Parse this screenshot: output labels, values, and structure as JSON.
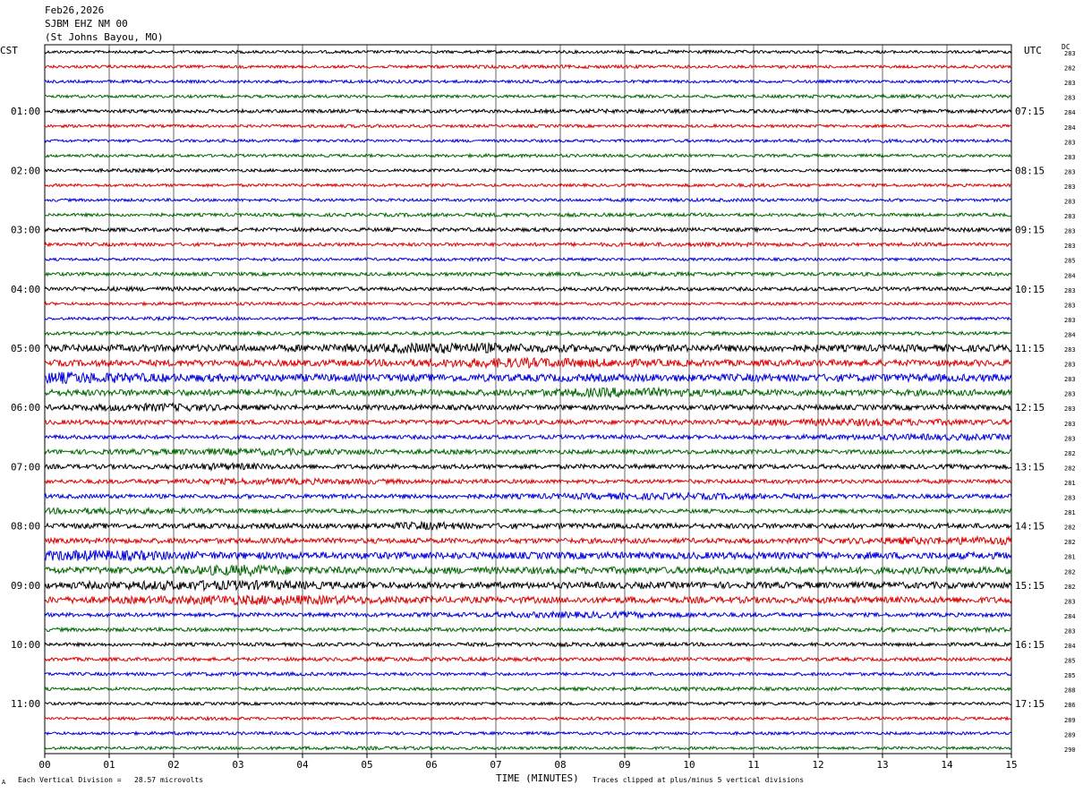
{
  "header": {
    "date": "Feb26,2026",
    "station": "SJBM EHZ NM 00",
    "location": "(St Johns Bayou, MO)"
  },
  "labels": {
    "left_timezone": "CST",
    "right_timezone": "UTC",
    "dc_header": "DC",
    "x_axis_title": "TIME (MINUTES)",
    "scale_note": "Each Vertical Division =   28.57 microvolts",
    "clip_note": "Traces clipped at plus/minus 5 vertical divisions",
    "corner_mark": "A"
  },
  "colors": {
    "trace_cycle": [
      "#000000",
      "#dd0000",
      "#0000dd",
      "#006600"
    ],
    "grid": "#000000"
  },
  "chart_data": {
    "type": "line",
    "title": "",
    "xlabel": "TIME (MINUTES)",
    "ylabel": "",
    "xlim": [
      0,
      15
    ],
    "x_ticks": [
      "00",
      "01",
      "02",
      "03",
      "04",
      "05",
      "06",
      "07",
      "08",
      "09",
      "10",
      "11",
      "12",
      "13",
      "14",
      "15"
    ],
    "row_count": 48,
    "left_hour_labels": [
      "01:00",
      "02:00",
      "03:00",
      "04:00",
      "05:00",
      "06:00",
      "07:00",
      "08:00",
      "09:00",
      "10:00",
      "11:00"
    ],
    "right_hour_labels": [
      "07:15",
      "08:15",
      "09:15",
      "10:15",
      "11:15",
      "12:15",
      "13:15",
      "14:15",
      "15:15",
      "16:15",
      "17:15"
    ],
    "hour_label_rows": [
      4,
      8,
      12,
      16,
      20,
      24,
      28,
      32,
      36,
      40,
      44
    ],
    "dc_values": [
      "283",
      "282",
      "283",
      "283",
      "284",
      "284",
      "283",
      "283",
      "283",
      "283",
      "283",
      "283",
      "283",
      "283",
      "285",
      "284",
      "283",
      "283",
      "283",
      "284",
      "283",
      "283",
      "283",
      "283",
      "283",
      "283",
      "283",
      "282",
      "282",
      "281",
      "283",
      "281",
      "282",
      "282",
      "281",
      "282",
      "282",
      "283",
      "284",
      "283",
      "284",
      "285",
      "285",
      "288",
      "286",
      "289",
      "289",
      "290"
    ],
    "activity": [
      1.0,
      1.0,
      1.0,
      1.0,
      1.2,
      1.0,
      1.0,
      1.0,
      1.0,
      1.0,
      1.0,
      1.1,
      1.3,
      1.2,
      1.0,
      1.2,
      1.3,
      1.0,
      1.0,
      1.2,
      2.4,
      2.2,
      2.6,
      2.2,
      1.8,
      1.6,
      1.4,
      1.5,
      1.6,
      1.4,
      1.5,
      1.4,
      1.8,
      1.8,
      2.4,
      2.4,
      2.2,
      2.2,
      1.4,
      1.3,
      1.2,
      1.2,
      1.1,
      1.1,
      1.0,
      1.0,
      1.0,
      1.0
    ]
  }
}
